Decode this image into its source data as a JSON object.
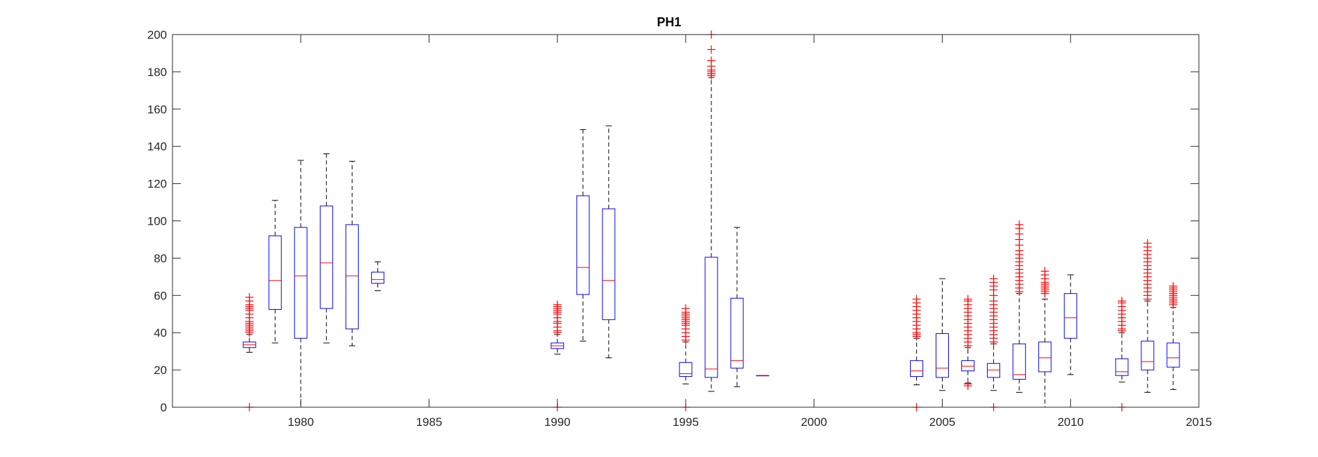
{
  "chart_data": {
    "type": "boxplot",
    "title": "PH1",
    "xlabel": "",
    "ylabel": "",
    "xlim": [
      1975,
      2015
    ],
    "ylim": [
      0,
      200
    ],
    "x_ticks": [
      1980,
      1985,
      1990,
      1995,
      2000,
      2005,
      2010,
      2015
    ],
    "y_ticks": [
      0,
      20,
      40,
      60,
      80,
      100,
      120,
      140,
      160,
      180,
      200
    ],
    "grid": false,
    "colors": {
      "box": "#0000ff",
      "median": "#ff0000",
      "whisker": "#000000",
      "outlier": "#ff0000",
      "axis": "#262626"
    },
    "boxes": [
      {
        "x": 1978,
        "q1": 32,
        "median": 33.5,
        "q3": 35,
        "whisker_low": 29.5,
        "whisker_high": 39,
        "outliers": [
          0,
          40,
          41,
          42,
          43,
          44,
          45,
          46,
          48,
          50,
          52,
          53,
          54,
          55,
          57,
          59
        ]
      },
      {
        "x": 1979,
        "q1": 52.5,
        "median": 68,
        "q3": 92,
        "whisker_low": 34.5,
        "whisker_high": 111,
        "outliers": []
      },
      {
        "x": 1980,
        "q1": 37,
        "median": 70.5,
        "q3": 96.5,
        "whisker_low": 0,
        "whisker_high": 132.5,
        "outliers": []
      },
      {
        "x": 1981,
        "q1": 53,
        "median": 77.5,
        "q3": 108,
        "whisker_low": 34.5,
        "whisker_high": 136,
        "outliers": []
      },
      {
        "x": 1982,
        "q1": 42,
        "median": 70.5,
        "q3": 98,
        "whisker_low": 33,
        "whisker_high": 132,
        "outliers": []
      },
      {
        "x": 1983,
        "q1": 66.5,
        "median": 68.5,
        "q3": 72.5,
        "whisker_low": 62.5,
        "whisker_high": 78,
        "outliers": []
      },
      {
        "x": 1990,
        "q1": 31.5,
        "median": 33,
        "q3": 34.5,
        "whisker_low": 28.5,
        "whisker_high": 39,
        "outliers": [
          0,
          40,
          41,
          43,
          45,
          46,
          48,
          50,
          51,
          52,
          53,
          54,
          55
        ]
      },
      {
        "x": 1991,
        "q1": 60.5,
        "median": 75,
        "q3": 113.5,
        "whisker_low": 35.5,
        "whisker_high": 149,
        "outliers": []
      },
      {
        "x": 1992,
        "q1": 47,
        "median": 68,
        "q3": 106.5,
        "whisker_low": 26.5,
        "whisker_high": 151,
        "outliers": []
      },
      {
        "x": 1995,
        "q1": 16.5,
        "median": 18,
        "q3": 24,
        "whisker_low": 12.5,
        "whisker_high": 35,
        "outliers": [
          0,
          36,
          38,
          40,
          42,
          44,
          45,
          46,
          47,
          48,
          49,
          50,
          51,
          53
        ]
      },
      {
        "x": 1996,
        "q1": 16,
        "median": 20.5,
        "q3": 80.5,
        "whisker_low": 8.5,
        "whisker_high": 177,
        "outliers": [
          178,
          179,
          180,
          181,
          183,
          186,
          192,
          200
        ]
      },
      {
        "x": 1997,
        "q1": 21,
        "median": 25,
        "q3": 58.5,
        "whisker_low": 11,
        "whisker_high": 96.5,
        "outliers": []
      },
      {
        "x": 1998,
        "q1": 17,
        "median": 17,
        "q3": 17,
        "whisker_low": 17,
        "whisker_high": 17,
        "outliers": []
      },
      {
        "x": 2004,
        "q1": 16.5,
        "median": 19.5,
        "q3": 25,
        "whisker_low": 12,
        "whisker_high": 37,
        "outliers": [
          0,
          38,
          39,
          40,
          42,
          44,
          46,
          48,
          50,
          52,
          54,
          56,
          58
        ]
      },
      {
        "x": 2005,
        "q1": 16,
        "median": 21,
        "q3": 39.5,
        "whisker_low": 9,
        "whisker_high": 69,
        "outliers": []
      },
      {
        "x": 2006,
        "q1": 19.5,
        "median": 22,
        "q3": 25,
        "whisker_low": 13,
        "whisker_high": 32,
        "outliers": [
          11.5,
          12.5,
          33,
          35,
          37,
          39,
          41,
          43,
          45,
          47,
          49,
          51,
          53,
          55,
          57,
          58
        ]
      },
      {
        "x": 2007,
        "q1": 16,
        "median": 20,
        "q3": 23.5,
        "whisker_low": 9,
        "whisker_high": 34,
        "outliers": [
          0,
          35,
          37,
          39,
          41,
          43,
          45,
          47,
          49,
          51,
          53,
          55,
          57,
          60,
          63,
          65,
          67,
          69
        ]
      },
      {
        "x": 2008,
        "q1": 15,
        "median": 17.5,
        "q3": 34,
        "whisker_low": 8,
        "whisker_high": 61,
        "outliers": [
          62,
          64,
          66,
          68,
          70,
          72,
          74,
          76,
          78,
          80,
          82,
          84,
          87,
          90,
          93,
          96,
          98
        ]
      },
      {
        "x": 2009,
        "q1": 19,
        "median": 26.5,
        "q3": 35,
        "whisker_low": 0,
        "whisker_high": 58,
        "outliers": [
          61,
          62,
          63,
          64,
          65,
          66,
          67,
          69,
          71,
          73
        ]
      },
      {
        "x": 2010,
        "q1": 37,
        "median": 48,
        "q3": 61,
        "whisker_low": 17.5,
        "whisker_high": 71,
        "outliers": []
      },
      {
        "x": 2012,
        "q1": 17,
        "median": 19,
        "q3": 26,
        "whisker_low": 13.5,
        "whisker_high": 40,
        "outliers": [
          0,
          41,
          42,
          44,
          46,
          48,
          50,
          52,
          54,
          56,
          57
        ]
      },
      {
        "x": 2013,
        "q1": 20,
        "median": 24.5,
        "q3": 35.5,
        "whisker_low": 8,
        "whisker_high": 57,
        "outliers": [
          58,
          60,
          62,
          64,
          66,
          68,
          70,
          72,
          74,
          76,
          78,
          80,
          82,
          84,
          86,
          88
        ]
      },
      {
        "x": 2014,
        "q1": 21.5,
        "median": 26.5,
        "q3": 34.5,
        "whisker_low": 9.5,
        "whisker_high": 53.5,
        "outliers": [
          55,
          56,
          57,
          58,
          59,
          60,
          61,
          62,
          63,
          64,
          65
        ]
      }
    ]
  }
}
